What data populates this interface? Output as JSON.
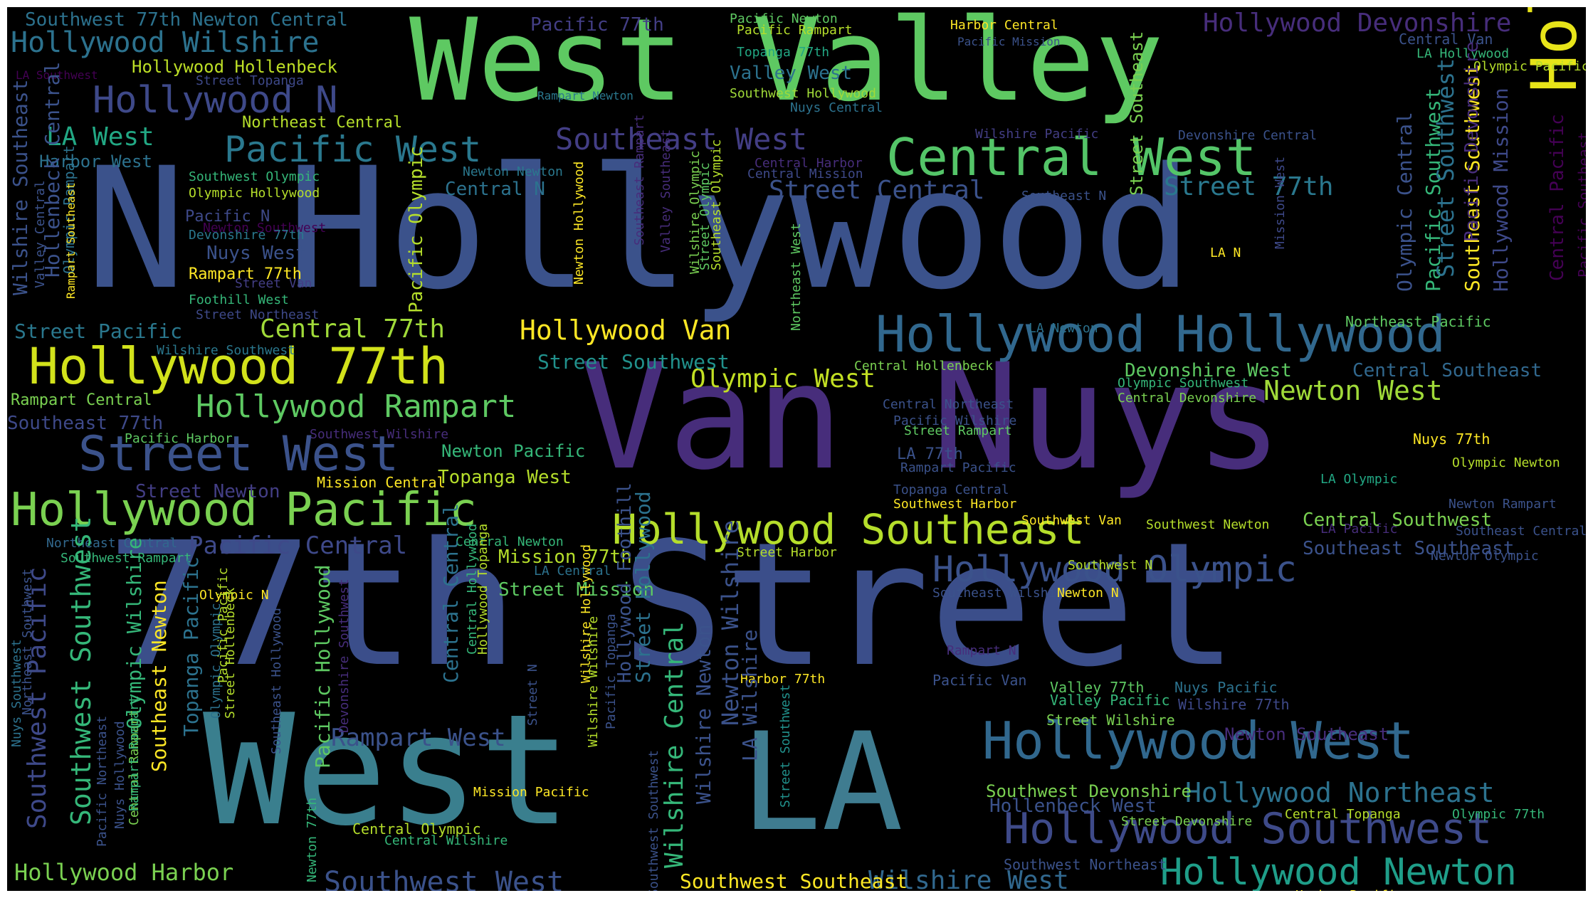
{
  "words": [
    {
      "text": "N Hollywood",
      "color": "#3b528b"
    },
    {
      "text": "West Valley",
      "color": "#5ec962"
    },
    {
      "text": "Van Nuys",
      "color": "#472d7b"
    },
    {
      "text": "77th Street",
      "color": "#3b4e8a"
    },
    {
      "text": "West",
      "color": "#3a7f8e"
    },
    {
      "text": "LA",
      "color": "#3f7c90"
    },
    {
      "text": "Hollywood Central",
      "color": "#e7e419"
    },
    {
      "text": "Hollywood Hollywood",
      "color": "#31688e"
    },
    {
      "text": "Hollywood 77th",
      "color": "#d2e21b"
    },
    {
      "text": "Central West",
      "color": "#54c568"
    },
    {
      "text": "Hollywood Pacific",
      "color": "#7ad151"
    },
    {
      "text": "Hollywood Southeast",
      "color": "#b5de2b"
    },
    {
      "text": "Hollywood West",
      "color": "#31688e"
    },
    {
      "text": "Hollywood Southwest",
      "color": "#3e4a89"
    },
    {
      "text": "Street West",
      "color": "#3b528b"
    },
    {
      "text": "Hollywood Newton",
      "color": "#1f9e89"
    },
    {
      "text": "Hollywood Olympic",
      "color": "#3b528b"
    },
    {
      "text": "Hollywood Wilshire",
      "color": "#2c728e"
    },
    {
      "text": "Hollywood N",
      "color": "#3e4989"
    },
    {
      "text": "Pacific West",
      "color": "#2a788e"
    },
    {
      "text": "Southeast West",
      "color": "#433e85"
    },
    {
      "text": "Hollywood Rampart",
      "color": "#5ec962"
    },
    {
      "text": "Hollywood Van",
      "color": "#fde725"
    },
    {
      "text": "Central 77th",
      "color": "#a0da39"
    },
    {
      "text": "Olympic West",
      "color": "#c2df23"
    },
    {
      "text": "Street Central",
      "color": "#3b528b"
    },
    {
      "text": "Street 77th",
      "color": "#2a788e"
    },
    {
      "text": "Hollywood Devonshire",
      "color": "#472d7b"
    },
    {
      "text": "Hollywood Northeast",
      "color": "#2c728e"
    },
    {
      "text": "Southwest West",
      "color": "#3b528b"
    },
    {
      "text": "Wilshire West",
      "color": "#31688e"
    },
    {
      "text": "Rampart West",
      "color": "#3b528b"
    },
    {
      "text": "Pacific Central",
      "color": "#3e4989"
    },
    {
      "text": "Hollywood Harbor",
      "color": "#7ad151"
    },
    {
      "text": "Hollenbeck West",
      "color": "#3b528b"
    },
    {
      "text": "Newton West",
      "color": "#a0da39"
    },
    {
      "text": "Southwest 77th Newton Central",
      "color": "#2c728e"
    },
    {
      "text": "Pacific 77th",
      "color": "#433e85"
    },
    {
      "text": "Pacific Newton",
      "color": "#5ec962"
    },
    {
      "text": "Pacific Rampart",
      "color": "#b5de2b"
    },
    {
      "text": "Pacific Mission",
      "color": "#3b528b"
    },
    {
      "text": "Harbor Central",
      "color": "#fde725"
    },
    {
      "text": "Topanga 77th",
      "color": "#22a884"
    },
    {
      "text": "Valley West",
      "color": "#2c728e"
    },
    {
      "text": "Southwest Hollywood",
      "color": "#a0da39"
    },
    {
      "text": "Nuys Central",
      "color": "#2c728e"
    },
    {
      "text": "Rampart Newton",
      "color": "#2a788e"
    },
    {
      "text": "Hollywood Hollenbeck",
      "color": "#bddf26"
    },
    {
      "text": "LA Southwest",
      "color": "#440154"
    },
    {
      "text": "Street Topanga",
      "color": "#3e4989"
    },
    {
      "text": "Northeast Central",
      "color": "#b5de2b"
    },
    {
      "text": "LA West",
      "color": "#22a884"
    },
    {
      "text": "Harbor West",
      "color": "#2c728e"
    },
    {
      "text": "Southwest Olympic",
      "color": "#35b779"
    },
    {
      "text": "Olympic Hollywood",
      "color": "#b5de2b"
    },
    {
      "text": "Pacific N",
      "color": "#3e4989"
    },
    {
      "text": "Newton Southwest",
      "color": "#440154"
    },
    {
      "text": "Devonshire 77th",
      "color": "#2a788e"
    },
    {
      "text": "Nuys West",
      "color": "#3b528b"
    },
    {
      "text": "Rampart 77th",
      "color": "#fde725"
    },
    {
      "text": "Street Van",
      "color": "#433e85"
    },
    {
      "text": "Foothill West",
      "color": "#35b779"
    },
    {
      "text": "Street Northeast",
      "color": "#3e4989"
    },
    {
      "text": "Newton Newton",
      "color": "#2a788e"
    },
    {
      "text": "Central N",
      "color": "#2c728e"
    },
    {
      "text": "Central Harbor",
      "color": "#472d7b"
    },
    {
      "text": "Central Mission",
      "color": "#3e4989"
    },
    {
      "text": "Southeast N",
      "color": "#3b528b"
    },
    {
      "text": "Wilshire Pacific",
      "color": "#433e85"
    },
    {
      "text": "Devonshire Central",
      "color": "#3b528b"
    },
    {
      "text": "Street Pacific",
      "color": "#2a788e"
    },
    {
      "text": "Wilshire Southwest",
      "color": "#2a788e"
    },
    {
      "text": "Street Southwest",
      "color": "#21918c"
    },
    {
      "text": "Rampart Central",
      "color": "#7ad151"
    },
    {
      "text": "Southeast 77th",
      "color": "#3e4989"
    },
    {
      "text": "Southwest Wilshire",
      "color": "#472d7b"
    },
    {
      "text": "Pacific Harbor",
      "color": "#5ec962"
    },
    {
      "text": "Street Newton",
      "color": "#433e85"
    },
    {
      "text": "Mission Central",
      "color": "#fde725"
    },
    {
      "text": "Topanga West",
      "color": "#b5de2b"
    },
    {
      "text": "Newton Pacific",
      "color": "#35b779"
    },
    {
      "text": "LA N",
      "color": "#fde725"
    },
    {
      "text": "LA Newton",
      "color": "#2c728e"
    },
    {
      "text": "Northeast Pacific",
      "color": "#5ec962"
    },
    {
      "text": "Central Hollenbeck",
      "color": "#7ad151"
    },
    {
      "text": "Devonshire West",
      "color": "#5ec962"
    },
    {
      "text": "Central Southeast",
      "color": "#31688e"
    },
    {
      "text": "Central Northeast",
      "color": "#3b528b"
    },
    {
      "text": "Olympic Southwest",
      "color": "#35b779"
    },
    {
      "text": "Central Devonshire",
      "color": "#7ad151"
    },
    {
      "text": "Pacific Wilshire",
      "color": "#3b528b"
    },
    {
      "text": "Street Rampart",
      "color": "#5ec962"
    },
    {
      "text": "LA 77th",
      "color": "#3b528b"
    },
    {
      "text": "Rampart Pacific",
      "color": "#3b528b"
    },
    {
      "text": "Topanga Central",
      "color": "#3b528b"
    },
    {
      "text": "Southwest Harbor",
      "color": "#fde725"
    },
    {
      "text": "Southwest Van",
      "color": "#fde725"
    },
    {
      "text": "Southwest Newton",
      "color": "#b5de2b"
    },
    {
      "text": "Nuys 77th",
      "color": "#fde725"
    },
    {
      "text": "Olympic Newton",
      "color": "#b5de2b"
    },
    {
      "text": "LA Olympic",
      "color": "#22a884"
    },
    {
      "text": "Newton Rampart",
      "color": "#3b528b"
    },
    {
      "text": "LA Pacific",
      "color": "#472d7b"
    },
    {
      "text": "Southeast Central",
      "color": "#3b528b"
    },
    {
      "text": "Central Southwest",
      "color": "#7ad151"
    },
    {
      "text": "Southeast Southeast",
      "color": "#3b528b"
    },
    {
      "text": "Newton Olympic",
      "color": "#3b528b"
    },
    {
      "text": "Southwest N",
      "color": "#b5de2b"
    },
    {
      "text": "Northeast Central",
      "color": "#31688e"
    },
    {
      "text": "Southwest Rampart",
      "color": "#35b779"
    },
    {
      "text": "Central Newton",
      "color": "#35b779"
    },
    {
      "text": "Mission 77th",
      "color": "#b5de2b"
    },
    {
      "text": "LA Central",
      "color": "#2c728e"
    },
    {
      "text": "Street Mission",
      "color": "#5ec962"
    },
    {
      "text": "Street Harbor",
      "color": "#b5de2b"
    },
    {
      "text": "Southeast Wilshire",
      "color": "#3b528b"
    },
    {
      "text": "Newton N",
      "color": "#fde725"
    },
    {
      "text": "Olympic N",
      "color": "#fde725"
    },
    {
      "text": "Rampart N",
      "color": "#472d7b"
    },
    {
      "text": "Harbor 77th",
      "color": "#fde725"
    },
    {
      "text": "Pacific Van",
      "color": "#3b528b"
    },
    {
      "text": "Valley 77th",
      "color": "#5ec962"
    },
    {
      "text": "Nuys Pacific",
      "color": "#2c728e"
    },
    {
      "text": "Valley Pacific",
      "color": "#35b779"
    },
    {
      "text": "Wilshire 77th",
      "color": "#3e4989"
    },
    {
      "text": "Street Wilshire",
      "color": "#7ad151"
    },
    {
      "text": "Newton Southeast",
      "color": "#472d7b"
    },
    {
      "text": "Southwest Devonshire",
      "color": "#7ad151"
    },
    {
      "text": "Street Devonshire",
      "color": "#7ad151"
    },
    {
      "text": "Central Topanga",
      "color": "#b5de2b"
    },
    {
      "text": "Olympic 77th",
      "color": "#35b779"
    },
    {
      "text": "Southwest Northeast",
      "color": "#3b528b"
    },
    {
      "text": "Southwest Southeast",
      "color": "#fde725"
    },
    {
      "text": "Harbor Pacific",
      "color": "#fde725"
    },
    {
      "text": "Central Van",
      "color": "#3b528b"
    },
    {
      "text": "LA Hollywood",
      "color": "#35b779"
    },
    {
      "text": "Olympic Pacific",
      "color": "#b5de2b"
    },
    {
      "text": "Mission Pacific",
      "color": "#fde725"
    },
    {
      "text": "Central Olympic",
      "color": "#b5de2b"
    },
    {
      "text": "Central Wilshire",
      "color": "#35b779"
    },
    {
      "text": "Wilshire Southeast",
      "color": "#3b528b"
    },
    {
      "text": "Hollenbeck Central",
      "color": "#3b528b"
    },
    {
      "text": "Valley Central",
      "color": "#3b528b"
    },
    {
      "text": "Olympic Rampart",
      "color": "#2c728e"
    },
    {
      "text": "Rampart Southeast",
      "color": "#fde725"
    },
    {
      "text": "Pacific Olympic",
      "color": "#b5de2b"
    },
    {
      "text": "Newton Hollywood",
      "color": "#fde725"
    },
    {
      "text": "Southeast Rampart",
      "color": "#472d7b"
    },
    {
      "text": "Valley Southeast",
      "color": "#472d7b"
    },
    {
      "text": "Wilshire Olympic",
      "color": "#7ad151"
    },
    {
      "text": "Street Olympic",
      "color": "#5ec962"
    },
    {
      "text": "Southeast Olympic",
      "color": "#b5de2b"
    },
    {
      "text": "Northeast West",
      "color": "#5ec962"
    },
    {
      "text": "Street Southeast",
      "color": "#7ad151"
    },
    {
      "text": "Mission West",
      "color": "#3e4989"
    },
    {
      "text": "Olympic Central",
      "color": "#3b528b"
    },
    {
      "text": "Pacific Southwest",
      "color": "#35b779"
    },
    {
      "text": "Southeast Southwest",
      "color": "#fde725"
    },
    {
      "text": "Street Southwest",
      "color": "#2c728e"
    },
    {
      "text": "Pacific Devonshire",
      "color": "#472d7b"
    },
    {
      "text": "Hollywood Mission",
      "color": "#3e4989"
    },
    {
      "text": "Central Pacific",
      "color": "#440154"
    },
    {
      "text": "Pacific Southeast",
      "color": "#440154"
    },
    {
      "text": "Southeast Southwest",
      "color": "#35b779"
    },
    {
      "text": "Southwest Pacific",
      "color": "#3e4989"
    },
    {
      "text": "Southwest Southwest",
      "color": "#35b779"
    },
    {
      "text": "Nuys Southwest",
      "color": "#2c728e"
    },
    {
      "text": "Northeast Southwest",
      "color": "#3b528b"
    },
    {
      "text": "Olympic Wilshire",
      "color": "#35b779"
    },
    {
      "text": "Southeast Newton",
      "color": "#fde725"
    },
    {
      "text": "Topanga Pacific",
      "color": "#2c728e"
    },
    {
      "text": "Olympic Olympic",
      "color": "#2c728e"
    },
    {
      "text": "Pacific Pacific",
      "color": "#b5de2b"
    },
    {
      "text": "Street Hollenbeck",
      "color": "#b5de2b"
    },
    {
      "text": "Central Rampart",
      "color": "#7ad151"
    },
    {
      "text": "Pacific Northeast",
      "color": "#3b528b"
    },
    {
      "text": "Nuys Hollywood",
      "color": "#3b528b"
    },
    {
      "text": "Rampart Rampart",
      "color": "#35b779"
    },
    {
      "text": "Southeast Hollywood",
      "color": "#3b528b"
    },
    {
      "text": "Newton 77th",
      "color": "#35b779"
    },
    {
      "text": "Pacific Hollywood",
      "color": "#5ec962"
    },
    {
      "text": "Devonshire Southwest",
      "color": "#472d7b"
    },
    {
      "text": "Central Central",
      "color": "#2c728e"
    },
    {
      "text": "Central Hollywood",
      "color": "#35b779"
    },
    {
      "text": "Hollywood Topanga",
      "color": "#b5de2b"
    },
    {
      "text": "Street N",
      "color": "#3b528b"
    },
    {
      "text": "Wilshire Hollywood",
      "color": "#fde725"
    },
    {
      "text": "Wilshire Wilshire",
      "color": "#b5de2b"
    },
    {
      "text": "Pacific Topanga",
      "color": "#3b528b"
    },
    {
      "text": "Hollywood Foothill",
      "color": "#3b528b"
    },
    {
      "text": "Street Hollywood",
      "color": "#2c728e"
    },
    {
      "text": "Southwest Southwest",
      "color": "#3b528b"
    },
    {
      "text": "Wilshire Central",
      "color": "#35b779"
    },
    {
      "text": "Wilshire Newton",
      "color": "#3b528b"
    },
    {
      "text": "Newton Wilshire",
      "color": "#3b528b"
    },
    {
      "text": "LA Wilshire",
      "color": "#3b528b"
    },
    {
      "text": "Street Southwest",
      "color": "#21918c"
    }
  ]
}
